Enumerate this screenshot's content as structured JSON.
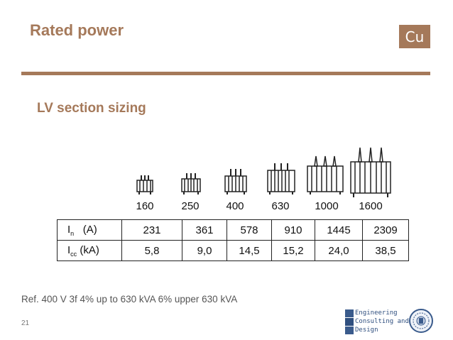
{
  "slide": {
    "title": "Rated power",
    "badge": "Cu",
    "subtitle": "LV section sizing",
    "reference": "Ref. 400 V 3f 4% up to 630 kVA 6% upper 630 kVA",
    "page_number": "21"
  },
  "ratings": [
    "160",
    "250",
    "400",
    "630",
    "1000",
    "1600"
  ],
  "table": {
    "rows": [
      {
        "label_main": "I",
        "label_sub": "n",
        "label_unit": "(A)",
        "values": [
          "231",
          "361",
          "578",
          "910",
          "1445",
          "2309"
        ]
      },
      {
        "label_main": "I",
        "label_sub": "cc",
        "label_unit": "(kA)",
        "values": [
          "5,8",
          "9,0",
          "14,5",
          "15,2",
          "24,0",
          "38,5"
        ]
      }
    ]
  },
  "logo": {
    "line1": "Engineering",
    "line2": "Consulting and",
    "line3": "Design",
    "accent_color": "#3a5b8c"
  },
  "colors": {
    "accent": "#a5795a"
  }
}
